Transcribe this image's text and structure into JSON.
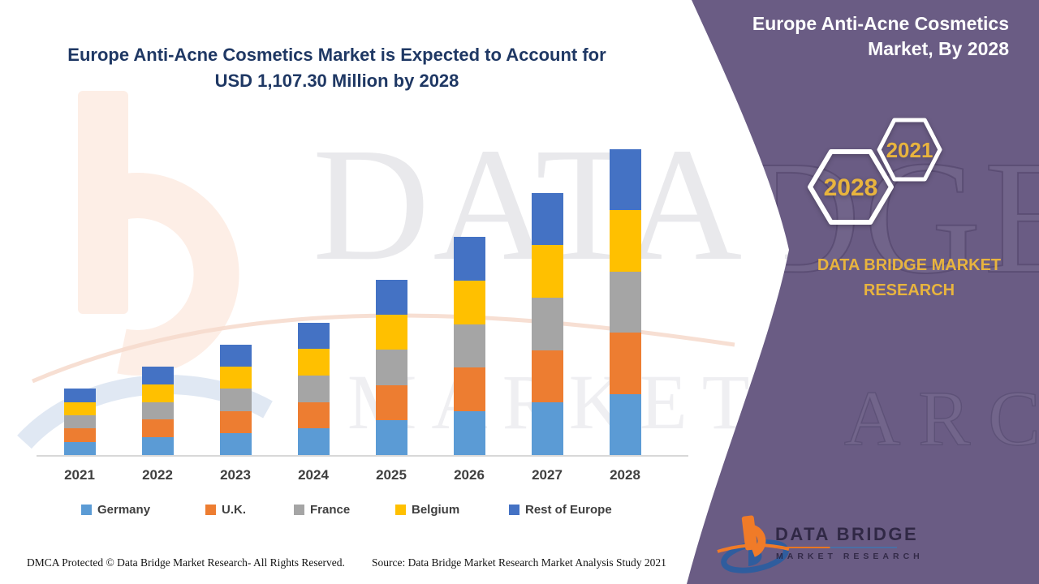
{
  "title": {
    "line1": "Europe Anti-Acne Cosmetics Market is Expected to Account for",
    "line2": "USD 1,107.30 Million by 2028",
    "color": "#1F3864"
  },
  "panel": {
    "bg_color": "#6A5C84",
    "title": "Europe Anti-Acne Cosmetics Market, By 2028",
    "badges": [
      {
        "label": "2028"
      },
      {
        "label": "2021"
      }
    ],
    "badge_text_color": "#E8B43E",
    "brand_text": "DATA BRIDGE MARKET RESEARCH"
  },
  "logo": {
    "title": "DATA BRIDGE",
    "subtitle": "MARKET RESEARCH"
  },
  "footer": {
    "dmca": "DMCA Protected © Data Bridge Market Research- All Rights Reserved.",
    "source": "Source: Data Bridge Market Research Market Analysis Study 2021"
  },
  "watermark": {
    "line1": "DATA BRIDGE",
    "line2": "MARKET RESEARCH"
  },
  "chart_data": {
    "type": "bar",
    "stacked": true,
    "title": "Europe Anti-Acne Cosmetics Market is Expected to Account for USD 1,107.30 Million by 2028",
    "unit": "USD Million",
    "categories": [
      "2021",
      "2022",
      "2023",
      "2024",
      "2025",
      "2026",
      "2027",
      "2028"
    ],
    "series": [
      {
        "name": "Germany",
        "color": "#5B9BD5",
        "values": [
          48,
          64,
          80,
          96,
          127,
          158,
          190,
          221.46
        ]
      },
      {
        "name": "U.K.",
        "color": "#ED7D31",
        "values": [
          48,
          64,
          80,
          96,
          127,
          158,
          190,
          221.46
        ]
      },
      {
        "name": "France",
        "color": "#A5A5A5",
        "values": [
          48,
          64,
          80,
          96,
          127,
          158,
          190,
          221.46
        ]
      },
      {
        "name": "Belgium",
        "color": "#FFC000",
        "values": [
          48,
          64,
          80,
          96,
          127,
          158,
          190,
          221.46
        ]
      },
      {
        "name": "Rest of Europe",
        "color": "#4472C4",
        "values": [
          48,
          64,
          80,
          96,
          127,
          158,
          190,
          221.46
        ]
      }
    ],
    "totals": [
      240,
      320,
      400,
      480,
      635,
      790,
      950,
      1107.3
    ],
    "ylim": [
      0,
      1140
    ],
    "y_axis_visible": false,
    "gridlines": false,
    "legend_position": "bottom",
    "note": "segment values estimated from bar heights; stacks appear equal within each year"
  }
}
